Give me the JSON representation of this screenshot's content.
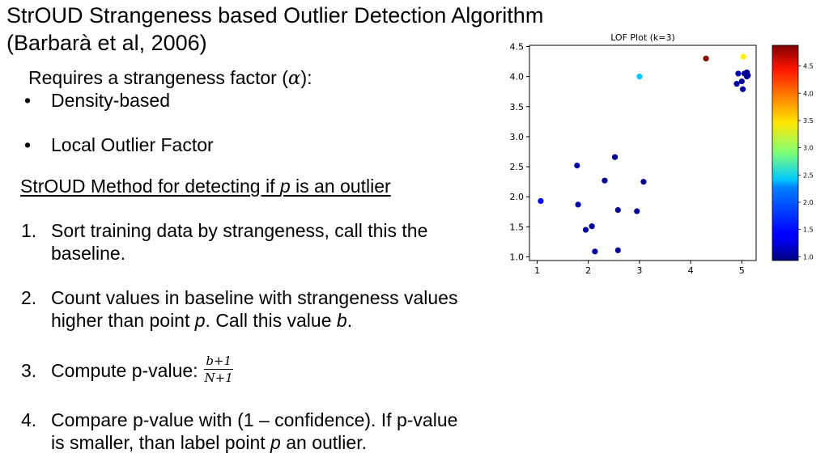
{
  "slide": {
    "title_line1": "StrOUD Strangeness based Outlier Detection Algorithm",
    "title_line2": "(Barbarà et al, 2006)",
    "requires_prefix": "Requires a strangeness factor (",
    "requires_symbol": "α",
    "requires_suffix": "):",
    "bullets": [
      "Density-based",
      "Local Outlier Factor"
    ],
    "bullet_marker": "•",
    "method_prefix": "StrOUD Method for detecting if ",
    "method_var": "p",
    "method_suffix": " is an outlier",
    "steps": [
      {
        "number": "1.",
        "line1": "Sort training data by strangeness, call this the",
        "line2": "baseline."
      },
      {
        "number": "2.",
        "line1": "Count values in baseline with strangeness values",
        "line2_prefix": "higher than point ",
        "line2_var1": "p",
        "line2_mid": ".  Call this value ",
        "line2_var2": "b",
        "line2_suffix": "."
      },
      {
        "number": "3.",
        "text": "Compute p-value: ",
        "frac_num": "b+1",
        "frac_den": "N+1"
      },
      {
        "number": "4.",
        "line1": "Compare p-value with (1 – confidence).  If p-value",
        "line2_prefix": "is smaller, than label point ",
        "line2_var": "p",
        "line2_suffix": " an outlier."
      }
    ]
  },
  "chart_data": {
    "type": "scatter",
    "title": "LOF Plot (k=3)",
    "xlim": [
      0.85,
      5.28
    ],
    "ylim": [
      0.94,
      4.52
    ],
    "xticks": [
      1,
      2,
      3,
      4,
      5
    ],
    "yticks": [
      1.0,
      1.5,
      2.0,
      2.5,
      3.0,
      3.5,
      4.0,
      4.5
    ],
    "ytick_labels": [
      "1.0",
      "1.5",
      "2.0",
      "2.5",
      "3.0",
      "3.5",
      "4.0",
      "4.5"
    ],
    "colormap": "jet",
    "colorbar_range": [
      0.93,
      4.88
    ],
    "colorbar_ticks": [
      1.0,
      1.5,
      2.0,
      2.5,
      3.0,
      3.5,
      4.0,
      4.5
    ],
    "colorbar_tick_labels": [
      "1.0",
      "1.5",
      "2.0",
      "2.5",
      "3.0",
      "3.5",
      "4.0",
      "4.5"
    ],
    "grid": false,
    "points": [
      {
        "x": 4.3,
        "y": 4.3,
        "lof": 4.85
      },
      {
        "x": 5.03,
        "y": 4.33,
        "lof": 3.45
      },
      {
        "x": 3.0,
        "y": 4.0,
        "lof": 2.2
      },
      {
        "x": 1.07,
        "y": 1.93,
        "lof": 1.45
      },
      {
        "x": 4.93,
        "y": 4.05,
        "lof": 1.12
      },
      {
        "x": 5.05,
        "y": 4.05,
        "lof": 1.05
      },
      {
        "x": 5.1,
        "y": 4.07,
        "lof": 1.0
      },
      {
        "x": 5.1,
        "y": 4.0,
        "lof": 1.05
      },
      {
        "x": 4.9,
        "y": 3.88,
        "lof": 1.05
      },
      {
        "x": 5.0,
        "y": 3.92,
        "lof": 1.0
      },
      {
        "x": 5.02,
        "y": 3.79,
        "lof": 1.05
      },
      {
        "x": 5.12,
        "y": 4.02,
        "lof": 1.0
      },
      {
        "x": 1.78,
        "y": 2.52,
        "lof": 1.1
      },
      {
        "x": 2.52,
        "y": 2.66,
        "lof": 1.0
      },
      {
        "x": 2.32,
        "y": 2.27,
        "lof": 1.0
      },
      {
        "x": 3.08,
        "y": 2.25,
        "lof": 1.0
      },
      {
        "x": 1.8,
        "y": 1.87,
        "lof": 1.05
      },
      {
        "x": 2.58,
        "y": 1.78,
        "lof": 1.0
      },
      {
        "x": 2.95,
        "y": 1.76,
        "lof": 1.0
      },
      {
        "x": 2.07,
        "y": 1.51,
        "lof": 1.05
      },
      {
        "x": 1.95,
        "y": 1.45,
        "lof": 1.05
      },
      {
        "x": 2.13,
        "y": 1.09,
        "lof": 1.05
      },
      {
        "x": 2.58,
        "y": 1.11,
        "lof": 1.0
      }
    ]
  }
}
